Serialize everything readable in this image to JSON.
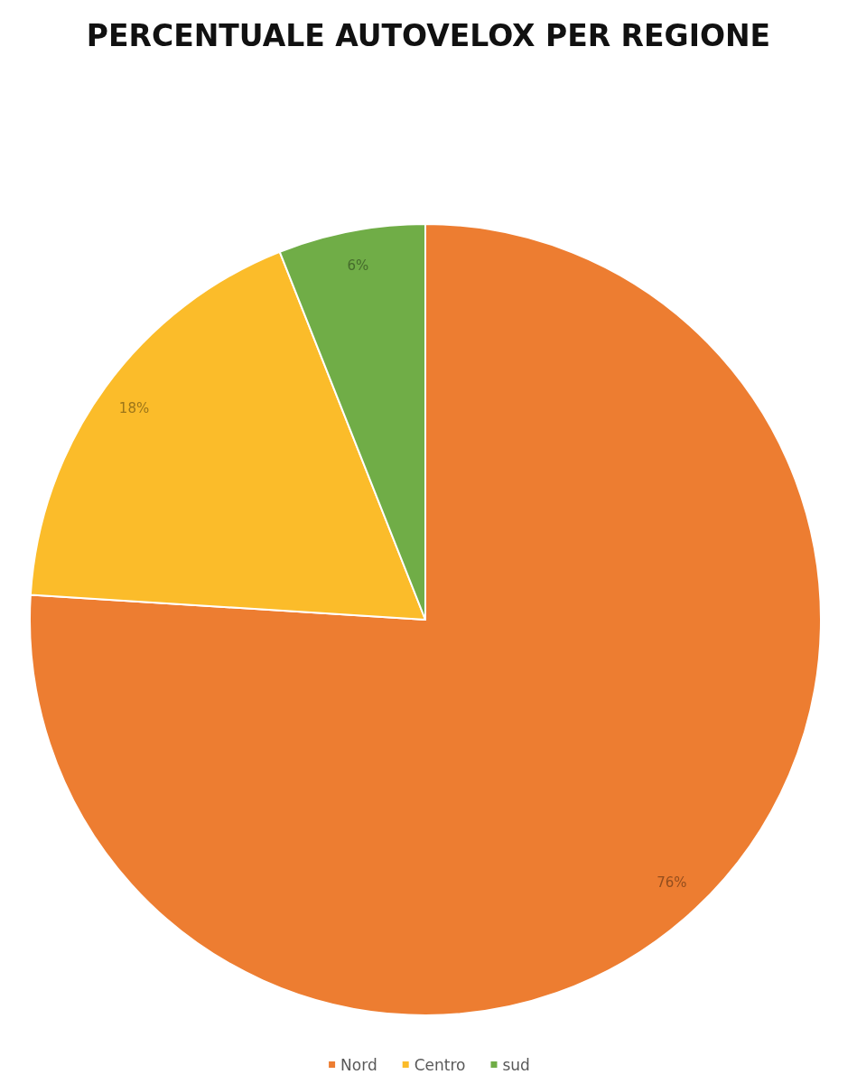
{
  "chart_data": {
    "type": "pie",
    "title": "PERCENTUALE AUTOVELOX PER REGIONE",
    "categories": [
      "Nord",
      "Centro",
      "sud"
    ],
    "values": [
      76,
      18,
      6
    ],
    "colors": [
      "#ed7d31",
      "#fbbc2a",
      "#70ad47"
    ],
    "value_labels": [
      "76%",
      "18%",
      "6%"
    ],
    "legend": "bottom"
  }
}
